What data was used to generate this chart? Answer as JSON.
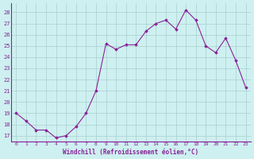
{
  "x": [
    0,
    1,
    2,
    3,
    4,
    5,
    6,
    7,
    8,
    9,
    10,
    11,
    12,
    13,
    14,
    15,
    16,
    17,
    18,
    19,
    20,
    21,
    22,
    23
  ],
  "y": [
    19.0,
    18.3,
    17.5,
    17.5,
    16.8,
    17.0,
    17.8,
    19.0,
    21.0,
    25.2,
    24.7,
    25.1,
    25.1,
    26.3,
    27.0,
    27.3,
    26.5,
    28.2,
    27.3,
    25.0,
    24.4,
    25.7,
    23.7,
    21.3
  ],
  "line_color": "#882299",
  "marker": "D",
  "marker_size": 1.8,
  "bg_color": "#cef0f0",
  "grid_color": "#aacece",
  "xlabel": "Windchill (Refroidissement éolien,°C)",
  "xlabel_color": "#882299",
  "tick_color": "#882299",
  "yticks": [
    17,
    18,
    19,
    20,
    21,
    22,
    23,
    24,
    25,
    26,
    27,
    28
  ],
  "ylim": [
    16.5,
    28.8
  ],
  "xlim": [
    -0.5,
    23.5
  ],
  "xticks": [
    0,
    1,
    2,
    3,
    4,
    5,
    6,
    7,
    8,
    9,
    10,
    11,
    12,
    13,
    14,
    15,
    16,
    17,
    18,
    19,
    20,
    21,
    22,
    23
  ]
}
